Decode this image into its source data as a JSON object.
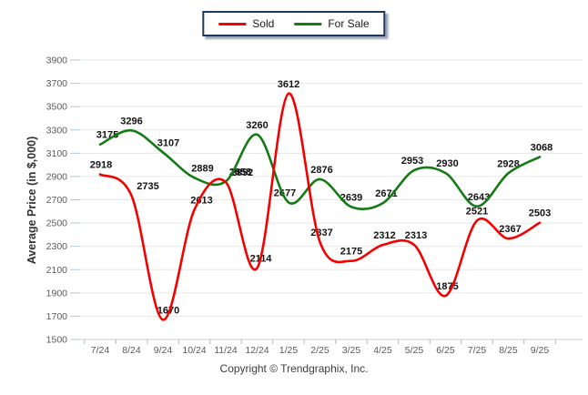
{
  "legend": {
    "items": [
      {
        "label": "Sold",
        "color": "#f40000"
      },
      {
        "label": "For Sale",
        "color": "#147a14"
      }
    ]
  },
  "chart_data": {
    "type": "line",
    "x": [
      "7/24",
      "8/24",
      "9/24",
      "10/24",
      "11/24",
      "12/24",
      "1/25",
      "2/25",
      "3/25",
      "4/25",
      "5/25",
      "6/25",
      "7/25",
      "8/25",
      "9/25"
    ],
    "series": [
      {
        "name": "Sold",
        "color": "#f40000",
        "values": [
          2918,
          2735,
          1670,
          2613,
          2852,
          2114,
          3612,
          2337,
          2175,
          2312,
          2313,
          1875,
          2521,
          2367,
          2503
        ]
      },
      {
        "name": "For Sale",
        "color": "#147a14",
        "values": [
          3175,
          3296,
          3107,
          2889,
          2858,
          3260,
          2677,
          2876,
          2639,
          2671,
          2953,
          2930,
          2643,
          2928,
          3068
        ]
      }
    ],
    "title": "",
    "xlabel": "",
    "ylabel": "Average Price (in $,000)",
    "ylim": [
      1500,
      3900
    ],
    "ytick_step": 200,
    "grid": "horizontal",
    "legend_position": "top-center",
    "data_labels": true
  },
  "footer": {
    "copyright": "Copyright © Trendgraphix, Inc."
  }
}
